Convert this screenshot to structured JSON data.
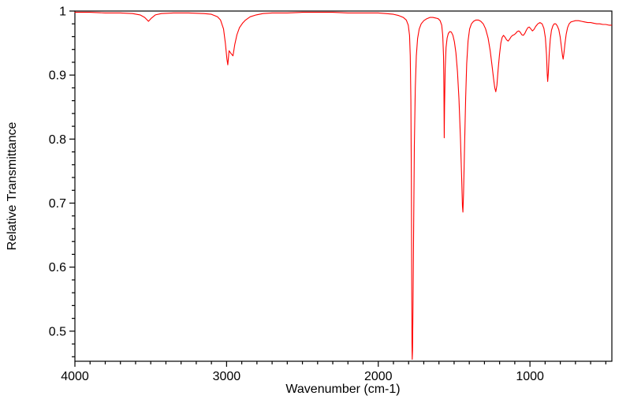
{
  "chart_data": {
    "type": "line",
    "title": "",
    "xlabel": "Wavenumber (cm-1)",
    "ylabel": "Relative Transmittance",
    "x_axis_reversed": true,
    "xlim": [
      4000,
      460
    ],
    "ylim": [
      0.453,
      1.0
    ],
    "grid": false,
    "legend": "none",
    "line_color": "#ff0000",
    "axis_color": "#000000",
    "background_color": "#ffffff",
    "x_ticks": [
      {
        "value": 4000,
        "label": "4000"
      },
      {
        "value": 3000,
        "label": "3000"
      },
      {
        "value": 2000,
        "label": "2000"
      },
      {
        "value": 1000,
        "label": "1000"
      }
    ],
    "y_ticks": [
      {
        "value": 1.0,
        "label": "1"
      },
      {
        "value": 0.9,
        "label": "0.9"
      },
      {
        "value": 0.8,
        "label": "0.8"
      },
      {
        "value": 0.7,
        "label": "0.7"
      },
      {
        "value": 0.6,
        "label": "0.6"
      },
      {
        "value": 0.5,
        "label": "0.5"
      }
    ],
    "x_minor_step": 100,
    "y_minor_step": 0.02,
    "series": [
      {
        "name": "IR spectrum",
        "points": [
          [
            4000,
            0.998
          ],
          [
            3900,
            0.998
          ],
          [
            3800,
            0.997
          ],
          [
            3700,
            0.997
          ],
          [
            3620,
            0.996
          ],
          [
            3570,
            0.994
          ],
          [
            3540,
            0.99
          ],
          [
            3515,
            0.984
          ],
          [
            3495,
            0.989
          ],
          [
            3470,
            0.994
          ],
          [
            3430,
            0.996
          ],
          [
            3350,
            0.997
          ],
          [
            3250,
            0.997
          ],
          [
            3150,
            0.996
          ],
          [
            3100,
            0.995
          ],
          [
            3060,
            0.991
          ],
          [
            3040,
            0.986
          ],
          [
            3020,
            0.972
          ],
          [
            3008,
            0.95
          ],
          [
            2998,
            0.925
          ],
          [
            2992,
            0.916
          ],
          [
            2984,
            0.938
          ],
          [
            2972,
            0.934
          ],
          [
            2958,
            0.93
          ],
          [
            2946,
            0.948
          ],
          [
            2932,
            0.963
          ],
          [
            2915,
            0.974
          ],
          [
            2895,
            0.981
          ],
          [
            2875,
            0.986
          ],
          [
            2845,
            0.991
          ],
          [
            2805,
            0.994
          ],
          [
            2760,
            0.996
          ],
          [
            2700,
            0.997
          ],
          [
            2600,
            0.997
          ],
          [
            2500,
            0.998
          ],
          [
            2400,
            0.998
          ],
          [
            2300,
            0.998
          ],
          [
            2200,
            0.997
          ],
          [
            2100,
            0.997
          ],
          [
            2000,
            0.997
          ],
          [
            1950,
            0.996
          ],
          [
            1900,
            0.995
          ],
          [
            1865,
            0.993
          ],
          [
            1835,
            0.99
          ],
          [
            1815,
            0.986
          ],
          [
            1802,
            0.978
          ],
          [
            1794,
            0.962
          ],
          [
            1789,
            0.93
          ],
          [
            1785,
            0.86
          ],
          [
            1782,
            0.74
          ],
          [
            1780,
            0.6
          ],
          [
            1778,
            0.48
          ],
          [
            1776,
            0.456
          ],
          [
            1774,
            0.47
          ],
          [
            1771,
            0.54
          ],
          [
            1767,
            0.66
          ],
          [
            1762,
            0.79
          ],
          [
            1756,
            0.88
          ],
          [
            1749,
            0.93
          ],
          [
            1741,
            0.957
          ],
          [
            1730,
            0.972
          ],
          [
            1717,
            0.98
          ],
          [
            1700,
            0.985
          ],
          [
            1680,
            0.988
          ],
          [
            1660,
            0.99
          ],
          [
            1640,
            0.99
          ],
          [
            1620,
            0.989
          ],
          [
            1605,
            0.988
          ],
          [
            1592,
            0.985
          ],
          [
            1582,
            0.978
          ],
          [
            1575,
            0.962
          ],
          [
            1570,
            0.93
          ],
          [
            1567,
            0.88
          ],
          [
            1565,
            0.802
          ],
          [
            1563,
            0.85
          ],
          [
            1559,
            0.91
          ],
          [
            1553,
            0.943
          ],
          [
            1546,
            0.958
          ],
          [
            1538,
            0.965
          ],
          [
            1528,
            0.968
          ],
          [
            1518,
            0.967
          ],
          [
            1508,
            0.962
          ],
          [
            1498,
            0.952
          ],
          [
            1488,
            0.935
          ],
          [
            1478,
            0.905
          ],
          [
            1468,
            0.862
          ],
          [
            1458,
            0.8
          ],
          [
            1450,
            0.735
          ],
          [
            1445,
            0.695
          ],
          [
            1442,
            0.686
          ],
          [
            1438,
            0.715
          ],
          [
            1431,
            0.79
          ],
          [
            1424,
            0.865
          ],
          [
            1417,
            0.918
          ],
          [
            1408,
            0.953
          ],
          [
            1398,
            0.972
          ],
          [
            1386,
            0.98
          ],
          [
            1372,
            0.984
          ],
          [
            1356,
            0.986
          ],
          [
            1340,
            0.986
          ],
          [
            1324,
            0.984
          ],
          [
            1308,
            0.98
          ],
          [
            1292,
            0.972
          ],
          [
            1276,
            0.958
          ],
          [
            1262,
            0.938
          ],
          [
            1250,
            0.915
          ],
          [
            1240,
            0.895
          ],
          [
            1232,
            0.88
          ],
          [
            1225,
            0.874
          ],
          [
            1218,
            0.884
          ],
          [
            1210,
            0.908
          ],
          [
            1201,
            0.932
          ],
          [
            1192,
            0.95
          ],
          [
            1183,
            0.959
          ],
          [
            1174,
            0.962
          ],
          [
            1164,
            0.959
          ],
          [
            1154,
            0.955
          ],
          [
            1144,
            0.953
          ],
          [
            1134,
            0.956
          ],
          [
            1124,
            0.96
          ],
          [
            1114,
            0.962
          ],
          [
            1104,
            0.963
          ],
          [
            1094,
            0.965
          ],
          [
            1084,
            0.968
          ],
          [
            1074,
            0.969
          ],
          [
            1064,
            0.967
          ],
          [
            1054,
            0.963
          ],
          [
            1044,
            0.962
          ],
          [
            1034,
            0.965
          ],
          [
            1024,
            0.97
          ],
          [
            1014,
            0.974
          ],
          [
            1004,
            0.975
          ],
          [
            994,
            0.972
          ],
          [
            984,
            0.969
          ],
          [
            974,
            0.971
          ],
          [
            962,
            0.976
          ],
          [
            948,
            0.98
          ],
          [
            934,
            0.982
          ],
          [
            920,
            0.98
          ],
          [
            908,
            0.973
          ],
          [
            898,
            0.958
          ],
          [
            891,
            0.932
          ],
          [
            886,
            0.902
          ],
          [
            883,
            0.89
          ],
          [
            879,
            0.903
          ],
          [
            873,
            0.932
          ],
          [
            866,
            0.956
          ],
          [
            858,
            0.97
          ],
          [
            849,
            0.977
          ],
          [
            840,
            0.98
          ],
          [
            830,
            0.98
          ],
          [
            820,
            0.977
          ],
          [
            810,
            0.971
          ],
          [
            801,
            0.96
          ],
          [
            793,
            0.945
          ],
          [
            786,
            0.931
          ],
          [
            781,
            0.925
          ],
          [
            776,
            0.934
          ],
          [
            769,
            0.95
          ],
          [
            761,
            0.964
          ],
          [
            752,
            0.974
          ],
          [
            742,
            0.98
          ],
          [
            730,
            0.983
          ],
          [
            715,
            0.984
          ],
          [
            700,
            0.985
          ],
          [
            680,
            0.985
          ],
          [
            660,
            0.984
          ],
          [
            640,
            0.983
          ],
          [
            620,
            0.982
          ],
          [
            600,
            0.982
          ],
          [
            580,
            0.981
          ],
          [
            560,
            0.98
          ],
          [
            540,
            0.98
          ],
          [
            520,
            0.979
          ],
          [
            500,
            0.979
          ],
          [
            480,
            0.978
          ],
          [
            462,
            0.978
          ]
        ]
      }
    ]
  }
}
